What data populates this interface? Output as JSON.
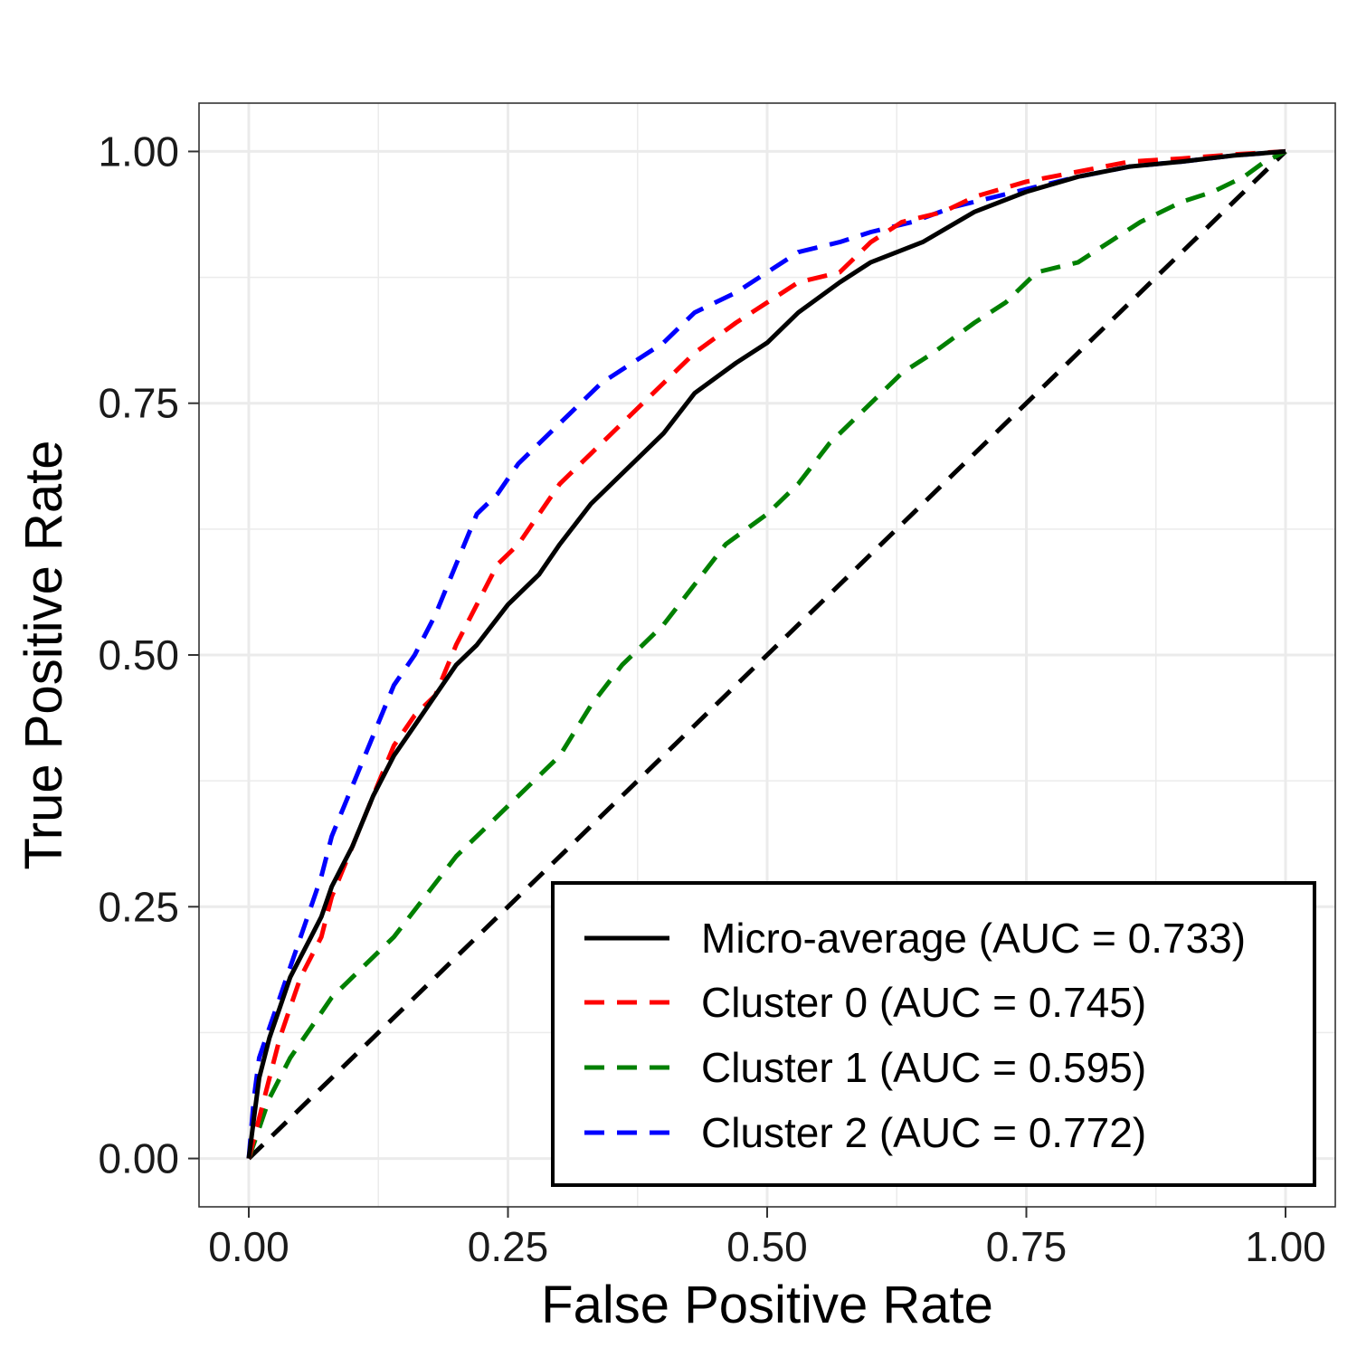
{
  "chart_data": {
    "type": "line",
    "title": "",
    "xlabel": "False Positive Rate",
    "ylabel": "True Positive Rate",
    "xlim": [
      -0.048,
      1.048
    ],
    "ylim": [
      -0.048,
      1.048
    ],
    "x_ticks": [
      "0.00",
      "0.25",
      "0.50",
      "0.75",
      "1.00"
    ],
    "y_ticks": [
      "0.00",
      "0.25",
      "0.50",
      "0.75",
      "1.00"
    ],
    "grid": true,
    "legend_position": "bottom-right",
    "series": [
      {
        "name": "Micro-average (AUC = 0.733)",
        "color": "#000000",
        "dash": "solid",
        "x": [
          0,
          0.005,
          0.01,
          0.02,
          0.03,
          0.04,
          0.05,
          0.06,
          0.07,
          0.08,
          0.1,
          0.12,
          0.14,
          0.16,
          0.18,
          0.2,
          0.22,
          0.25,
          0.28,
          0.3,
          0.33,
          0.36,
          0.4,
          0.43,
          0.47,
          0.5,
          0.53,
          0.57,
          0.6,
          0.65,
          0.7,
          0.75,
          0.8,
          0.85,
          0.9,
          0.95,
          1.0
        ],
        "y": [
          0,
          0.04,
          0.08,
          0.12,
          0.15,
          0.18,
          0.2,
          0.22,
          0.24,
          0.27,
          0.31,
          0.36,
          0.4,
          0.43,
          0.46,
          0.49,
          0.51,
          0.55,
          0.58,
          0.61,
          0.65,
          0.68,
          0.72,
          0.76,
          0.79,
          0.81,
          0.84,
          0.87,
          0.89,
          0.91,
          0.94,
          0.96,
          0.975,
          0.985,
          0.99,
          0.996,
          1.0
        ]
      },
      {
        "name": "Cluster 0 (AUC = 0.745)",
        "color": "#ff0000",
        "dash": "dashed",
        "x": [
          0,
          0.01,
          0.02,
          0.03,
          0.04,
          0.05,
          0.06,
          0.07,
          0.08,
          0.1,
          0.12,
          0.14,
          0.16,
          0.18,
          0.2,
          0.22,
          0.24,
          0.26,
          0.28,
          0.3,
          0.33,
          0.36,
          0.4,
          0.43,
          0.47,
          0.5,
          0.53,
          0.57,
          0.6,
          0.63,
          0.67,
          0.7,
          0.75,
          0.8,
          0.85,
          0.9,
          0.95,
          1.0
        ],
        "y": [
          0,
          0.04,
          0.08,
          0.12,
          0.15,
          0.18,
          0.2,
          0.22,
          0.26,
          0.31,
          0.36,
          0.41,
          0.44,
          0.46,
          0.51,
          0.55,
          0.59,
          0.61,
          0.64,
          0.67,
          0.7,
          0.73,
          0.77,
          0.8,
          0.83,
          0.85,
          0.87,
          0.88,
          0.91,
          0.93,
          0.94,
          0.955,
          0.97,
          0.98,
          0.99,
          0.993,
          0.997,
          1.0
        ]
      },
      {
        "name": "Cluster 1 (AUC = 0.595)",
        "color": "#008000",
        "dash": "dashed",
        "x": [
          0,
          0.02,
          0.04,
          0.06,
          0.08,
          0.1,
          0.12,
          0.14,
          0.17,
          0.2,
          0.23,
          0.26,
          0.3,
          0.33,
          0.36,
          0.4,
          0.43,
          0.46,
          0.5,
          0.53,
          0.56,
          0.6,
          0.63,
          0.66,
          0.7,
          0.73,
          0.76,
          0.8,
          0.83,
          0.86,
          0.9,
          0.93,
          0.96,
          0.98,
          1.0
        ],
        "y": [
          0,
          0.06,
          0.1,
          0.13,
          0.16,
          0.18,
          0.2,
          0.22,
          0.26,
          0.3,
          0.33,
          0.36,
          0.4,
          0.45,
          0.49,
          0.53,
          0.57,
          0.61,
          0.64,
          0.67,
          0.71,
          0.75,
          0.78,
          0.8,
          0.83,
          0.85,
          0.88,
          0.89,
          0.91,
          0.93,
          0.95,
          0.96,
          0.975,
          0.99,
          1.0
        ]
      },
      {
        "name": "Cluster 2 (AUC = 0.772)",
        "color": "#0000ff",
        "dash": "dashed",
        "x": [
          0,
          0.005,
          0.01,
          0.02,
          0.03,
          0.04,
          0.05,
          0.06,
          0.07,
          0.08,
          0.1,
          0.12,
          0.14,
          0.16,
          0.18,
          0.2,
          0.22,
          0.24,
          0.26,
          0.28,
          0.31,
          0.34,
          0.37,
          0.4,
          0.43,
          0.47,
          0.5,
          0.53,
          0.57,
          0.6,
          0.64,
          0.68,
          0.72,
          0.76,
          0.8,
          0.85,
          0.9,
          0.95,
          1.0
        ],
        "y": [
          0,
          0.06,
          0.1,
          0.13,
          0.16,
          0.19,
          0.22,
          0.25,
          0.28,
          0.32,
          0.37,
          0.42,
          0.47,
          0.5,
          0.54,
          0.59,
          0.64,
          0.66,
          0.69,
          0.71,
          0.74,
          0.77,
          0.79,
          0.81,
          0.84,
          0.86,
          0.88,
          0.9,
          0.91,
          0.92,
          0.93,
          0.945,
          0.955,
          0.965,
          0.975,
          0.985,
          0.99,
          0.996,
          1.0
        ]
      },
      {
        "name": "",
        "color": "#000000",
        "dash": "dashed",
        "x": [
          0,
          1
        ],
        "y": [
          0,
          1
        ]
      }
    ]
  }
}
